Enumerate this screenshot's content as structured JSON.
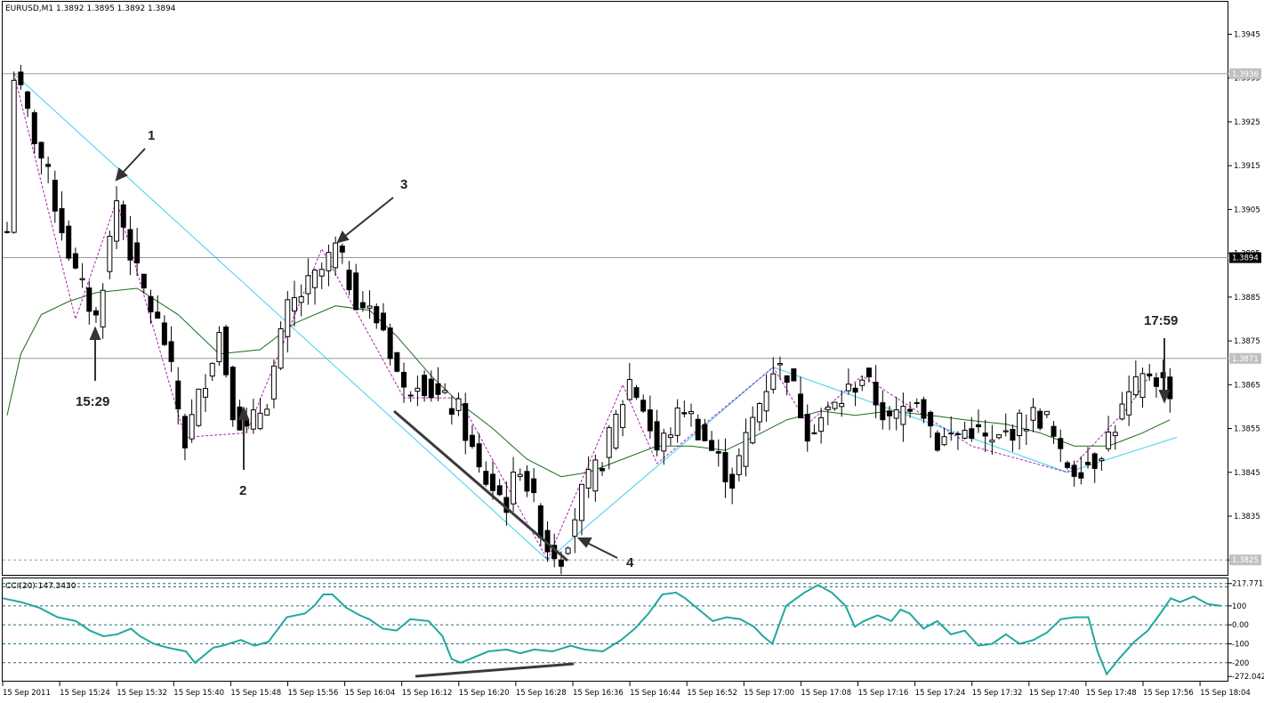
{
  "header": {
    "symbol_info": "EURUSD,M1  1.3892 1.3895 1.3892 1.3894",
    "indicator_info": "CCI(20) 147.3430"
  },
  "chart_data": [
    {
      "type": "candlestick",
      "symbol": "EURUSD",
      "timeframe": "M1",
      "ylim": [
        1.3822,
        1.3952
      ],
      "y_ticks": [
        1.3945,
        1.3935,
        1.3925,
        1.3915,
        1.3905,
        1.3895,
        1.3885,
        1.3875,
        1.3865,
        1.3855,
        1.3845,
        1.3835,
        1.3825
      ],
      "y_tick_labels": [
        "1.3945",
        "1.3935",
        "1.3925",
        "1.3915",
        "1.3905",
        "1.3895",
        "1.3885",
        "1.3875",
        "1.3865",
        "1.3855",
        "1.3845",
        "1.3835",
        "1.3825"
      ],
      "price_tags": [
        {
          "label": "1.3936",
          "value": 1.3936,
          "style": "solid"
        },
        {
          "label": "1.3894",
          "value": 1.3894,
          "style": "solid",
          "current": true
        },
        {
          "label": "1.3871",
          "value": 1.3871,
          "style": "solid"
        },
        {
          "label": "1.3825",
          "value": 1.3825,
          "style": "dotted"
        }
      ],
      "x_labels": [
        "15 Sep 2011",
        "15 Sep 15:24",
        "15 Sep 15:32",
        "15 Sep 15:40",
        "15 Sep 15:48",
        "15 Sep 15:56",
        "15 Sep 16:04",
        "15 Sep 16:12",
        "15 Sep 16:20",
        "15 Sep 16:28",
        "15 Sep 16:36",
        "15 Sep 16:44",
        "15 Sep 16:52",
        "15 Sep 17:00",
        "15 Sep 17:08",
        "15 Sep 17:16",
        "15 Sep 17:24",
        "15 Sep 17:32",
        "15 Sep 17:40",
        "15 Sep 17:48",
        "15 Sep 17:56",
        "15 Sep 18:04"
      ],
      "close_path": [
        [
          0,
          1.39
        ],
        [
          1,
          1.3936
        ],
        [
          6,
          1.3912
        ],
        [
          10,
          1.389
        ],
        [
          13,
          1.388
        ],
        [
          16,
          1.3907
        ],
        [
          19,
          1.389
        ],
        [
          23,
          1.3875
        ],
        [
          26,
          1.3852
        ],
        [
          31,
          1.3877
        ],
        [
          33,
          1.386
        ],
        [
          35,
          1.3854
        ],
        [
          38,
          1.3862
        ],
        [
          41,
          1.3882
        ],
        [
          46,
          1.3891
        ],
        [
          48,
          1.3896
        ],
        [
          51,
          1.3885
        ],
        [
          55,
          1.3878
        ],
        [
          58,
          1.3863
        ],
        [
          60,
          1.3867
        ],
        [
          63,
          1.3862
        ],
        [
          66,
          1.3859
        ],
        [
          69,
          1.3845
        ],
        [
          73,
          1.3838
        ],
        [
          75,
          1.3847
        ],
        [
          79,
          1.3828
        ],
        [
          81,
          1.3826
        ],
        [
          84,
          1.384
        ],
        [
          87,
          1.3848
        ],
        [
          91,
          1.3866
        ],
        [
          93,
          1.386
        ],
        [
          95,
          1.385
        ],
        [
          99,
          1.386
        ],
        [
          103,
          1.385
        ],
        [
          106,
          1.3843
        ],
        [
          109,
          1.3857
        ],
        [
          112,
          1.3869
        ],
        [
          114,
          1.3868
        ],
        [
          117,
          1.3855
        ],
        [
          121,
          1.386
        ],
        [
          125,
          1.3867
        ],
        [
          129,
          1.3856
        ],
        [
          133,
          1.3863
        ],
        [
          136,
          1.3852
        ],
        [
          141,
          1.3855
        ],
        [
          144,
          1.3851
        ],
        [
          147,
          1.3855
        ],
        [
          150,
          1.3858
        ],
        [
          152,
          1.3857
        ],
        [
          154,
          1.3848
        ],
        [
          156,
          1.3846
        ],
        [
          159,
          1.3848
        ],
        [
          162,
          1.3856
        ],
        [
          164,
          1.3862
        ],
        [
          167,
          1.3868
        ],
        [
          170,
          1.3864
        ]
      ],
      "ma_path": [
        [
          0,
          1.3858
        ],
        [
          2,
          1.3872
        ],
        [
          5,
          1.3881
        ],
        [
          9,
          1.3884
        ],
        [
          13,
          1.3886
        ],
        [
          19,
          1.3887
        ],
        [
          25,
          1.3881
        ],
        [
          31,
          1.3872
        ],
        [
          37,
          1.3873
        ],
        [
          42,
          1.3879
        ],
        [
          48,
          1.3883
        ],
        [
          53,
          1.3882
        ],
        [
          57,
          1.3876
        ],
        [
          62,
          1.3867
        ],
        [
          66,
          1.3861
        ],
        [
          71,
          1.3855
        ],
        [
          76,
          1.3848
        ],
        [
          81,
          1.3844
        ],
        [
          85,
          1.3845
        ],
        [
          90,
          1.3848
        ],
        [
          95,
          1.3851
        ],
        [
          100,
          1.3851
        ],
        [
          105,
          1.385
        ],
        [
          109,
          1.3853
        ],
        [
          114,
          1.3857
        ],
        [
          119,
          1.3859
        ],
        [
          124,
          1.3858
        ],
        [
          129,
          1.3859
        ],
        [
          135,
          1.3858
        ],
        [
          140,
          1.3857
        ],
        [
          146,
          1.3856
        ],
        [
          151,
          1.3854
        ],
        [
          156,
          1.3851
        ],
        [
          161,
          1.3851
        ],
        [
          166,
          1.3854
        ],
        [
          170,
          1.3857
        ]
      ],
      "zigzag": [
        [
          1,
          1.3936
        ],
        [
          10,
          1.388
        ],
        [
          16,
          1.3907
        ],
        [
          26,
          1.3853
        ],
        [
          35,
          1.3854
        ],
        [
          46,
          1.3896
        ],
        [
          58,
          1.3862
        ],
        [
          66,
          1.3862
        ],
        [
          79,
          1.3825
        ],
        [
          90,
          1.3865
        ],
        [
          95,
          1.3847
        ],
        [
          112,
          1.3869
        ],
        [
          117,
          1.3856
        ],
        [
          125,
          1.3867
        ],
        [
          141,
          1.3851
        ],
        [
          155,
          1.3845
        ],
        [
          164,
          1.386
        ],
        [
          167,
          1.3867
        ]
      ],
      "trendlines": [
        {
          "from": [
            1,
            1.3936
          ],
          "to": [
            79,
            1.3825
          ]
        },
        {
          "from": [
            79,
            1.3825
          ],
          "to": [
            112,
            1.3869
          ]
        },
        {
          "from": [
            112,
            1.3869
          ],
          "to": [
            155,
            1.3845
          ]
        },
        {
          "from": [
            155,
            1.3845
          ],
          "to": [
            171,
            1.3853
          ]
        }
      ],
      "annotations": [
        {
          "label": "1"
        },
        {
          "label": "15:29"
        },
        {
          "label": "2"
        },
        {
          "label": "3"
        },
        {
          "label": "4"
        },
        {
          "label": "17:59"
        }
      ]
    },
    {
      "type": "line",
      "indicator": "CCI(20)",
      "ylim": [
        -290,
        240
      ],
      "y_tick_labels": [
        "217.7712",
        "100",
        "0.00",
        "-100",
        "-200",
        "-272.042"
      ],
      "levels": [
        217.7712,
        200,
        100,
        0,
        -100,
        -200
      ],
      "series": [
        {
          "name": "CCI(20)",
          "values": [
            [
              0,
              140
            ],
            [
              4,
              120
            ],
            [
              8,
              90
            ],
            [
              12,
              40
            ],
            [
              16,
              20
            ],
            [
              19,
              -30
            ],
            [
              22,
              -60
            ],
            [
              25,
              -50
            ],
            [
              28,
              -20
            ],
            [
              30,
              -60
            ],
            [
              33,
              -100
            ],
            [
              36,
              -120
            ],
            [
              40,
              -140
            ],
            [
              42,
              -200
            ],
            [
              46,
              -120
            ],
            [
              48,
              -110
            ],
            [
              52,
              -80
            ],
            [
              55,
              -110
            ],
            [
              58,
              -90
            ],
            [
              62,
              40
            ],
            [
              66,
              60
            ],
            [
              68,
              100
            ],
            [
              70,
              160
            ],
            [
              72,
              160
            ],
            [
              75,
              90
            ],
            [
              78,
              50
            ],
            [
              80,
              30
            ],
            [
              83,
              -20
            ],
            [
              86,
              -30
            ],
            [
              89,
              30
            ],
            [
              93,
              20
            ],
            [
              96,
              -60
            ],
            [
              98,
              -180
            ],
            [
              100,
              -200
            ],
            [
              103,
              -170
            ],
            [
              106,
              -140
            ],
            [
              110,
              -130
            ],
            [
              113,
              -150
            ],
            [
              116,
              -130
            ],
            [
              120,
              -140
            ],
            [
              124,
              -110
            ],
            [
              127,
              -130
            ],
            [
              131,
              -140
            ],
            [
              135,
              -80
            ],
            [
              138,
              -20
            ],
            [
              141,
              60
            ],
            [
              144,
              160
            ],
            [
              147,
              170
            ],
            [
              149,
              140
            ],
            [
              152,
              80
            ],
            [
              155,
              20
            ],
            [
              158,
              40
            ],
            [
              161,
              30
            ],
            [
              164,
              -10
            ],
            [
              166,
              -60
            ],
            [
              168,
              -100
            ],
            [
              171,
              100
            ],
            [
              175,
              170
            ],
            [
              178,
              210
            ],
            [
              181,
              170
            ],
            [
              184,
              100
            ],
            [
              186,
              -10
            ],
            [
              188,
              20
            ],
            [
              191,
              50
            ],
            [
              194,
              20
            ],
            [
              196,
              80
            ],
            [
              198,
              60
            ],
            [
              201,
              -20
            ],
            [
              204,
              20
            ],
            [
              207,
              -50
            ],
            [
              210,
              -30
            ],
            [
              213,
              -110
            ],
            [
              216,
              -100
            ],
            [
              219,
              -50
            ],
            [
              222,
              -100
            ],
            [
              225,
              -80
            ],
            [
              228,
              -40
            ],
            [
              231,
              30
            ],
            [
              234,
              40
            ],
            [
              237,
              40
            ],
            [
              239,
              -140
            ],
            [
              241,
              -260
            ],
            [
              244,
              -170
            ],
            [
              247,
              -90
            ],
            [
              250,
              -30
            ],
            [
              253,
              70
            ],
            [
              255,
              140
            ],
            [
              257,
              120
            ],
            [
              260,
              150
            ],
            [
              263,
              110
            ],
            [
              266,
              100
            ]
          ]
        }
      ]
    }
  ]
}
